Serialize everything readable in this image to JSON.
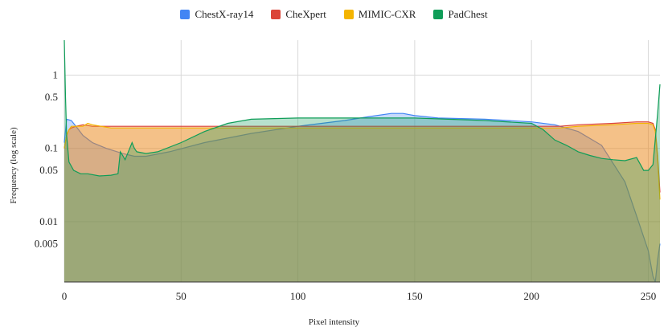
{
  "chart_data": {
    "type": "area",
    "xlabel": "Pixel intensity",
    "ylabel": "Frequency (log scale)",
    "xlim": [
      0,
      255
    ],
    "ylim": [
      0.0015,
      3
    ],
    "y_scale": "log",
    "x_ticks": [
      0,
      50,
      100,
      150,
      200,
      250
    ],
    "y_ticks": [
      1,
      0.5,
      0.1,
      0.05,
      0.01,
      0.005
    ],
    "y_tick_labels": [
      "1",
      "0.5",
      "0.1",
      "0.05",
      "0.01",
      "0.005"
    ],
    "grid": true,
    "legend_position": "top-center",
    "series": [
      {
        "name": "ChestX-ray14",
        "color": "#4285f4",
        "x": [
          0,
          1,
          3,
          5,
          8,
          12,
          18,
          25,
          30,
          35,
          45,
          60,
          80,
          100,
          120,
          130,
          140,
          145,
          150,
          160,
          180,
          190,
          200,
          210,
          220,
          230,
          240,
          245,
          250,
          252,
          253,
          254,
          255
        ],
        "y": [
          0.12,
          0.25,
          0.24,
          0.2,
          0.15,
          0.12,
          0.1,
          0.085,
          0.078,
          0.078,
          0.09,
          0.12,
          0.16,
          0.2,
          0.24,
          0.27,
          0.3,
          0.3,
          0.28,
          0.26,
          0.25,
          0.24,
          0.23,
          0.21,
          0.17,
          0.11,
          0.035,
          0.012,
          0.004,
          0.0018,
          0.0015,
          0.003,
          0.005
        ]
      },
      {
        "name": "CheXpert",
        "color": "#db4437",
        "x": [
          0,
          1,
          2,
          3,
          5,
          8,
          12,
          20,
          30,
          50,
          80,
          100,
          150,
          200,
          212,
          220,
          235,
          245,
          250,
          252,
          253,
          254,
          255
        ],
        "y": [
          0.1,
          0.15,
          0.18,
          0.19,
          0.2,
          0.21,
          0.2,
          0.2,
          0.2,
          0.2,
          0.2,
          0.2,
          0.2,
          0.2,
          0.2,
          0.21,
          0.22,
          0.23,
          0.23,
          0.22,
          0.18,
          0.08,
          0.025
        ]
      },
      {
        "name": "MIMIC-CXR",
        "color": "#f4b400",
        "x": [
          0,
          1,
          2,
          3,
          5,
          8,
          10,
          12,
          20,
          30,
          50,
          80,
          100,
          150,
          200,
          212,
          220,
          235,
          245,
          250,
          252,
          253,
          254,
          255
        ],
        "y": [
          0.1,
          0.15,
          0.18,
          0.2,
          0.2,
          0.2,
          0.22,
          0.21,
          0.19,
          0.19,
          0.19,
          0.19,
          0.19,
          0.19,
          0.19,
          0.19,
          0.2,
          0.21,
          0.22,
          0.22,
          0.21,
          0.17,
          0.07,
          0.02
        ]
      },
      {
        "name": "PadChest",
        "color": "#0f9d58",
        "x": [
          0,
          0.5,
          1,
          2,
          4,
          7,
          10,
          15,
          20,
          23,
          24,
          25,
          26,
          28,
          29,
          30,
          31,
          35,
          40,
          50,
          60,
          70,
          80,
          100,
          120,
          150,
          180,
          200,
          205,
          210,
          215,
          220,
          225,
          230,
          235,
          240,
          245,
          248,
          250,
          252,
          254,
          255
        ],
        "y": [
          3.0,
          0.5,
          0.15,
          0.065,
          0.05,
          0.045,
          0.045,
          0.042,
          0.043,
          0.045,
          0.09,
          0.08,
          0.07,
          0.1,
          0.12,
          0.1,
          0.09,
          0.085,
          0.09,
          0.12,
          0.17,
          0.22,
          0.25,
          0.26,
          0.26,
          0.26,
          0.24,
          0.22,
          0.18,
          0.13,
          0.11,
          0.09,
          0.08,
          0.073,
          0.07,
          0.068,
          0.075,
          0.05,
          0.05,
          0.06,
          0.3,
          0.75
        ]
      }
    ]
  }
}
